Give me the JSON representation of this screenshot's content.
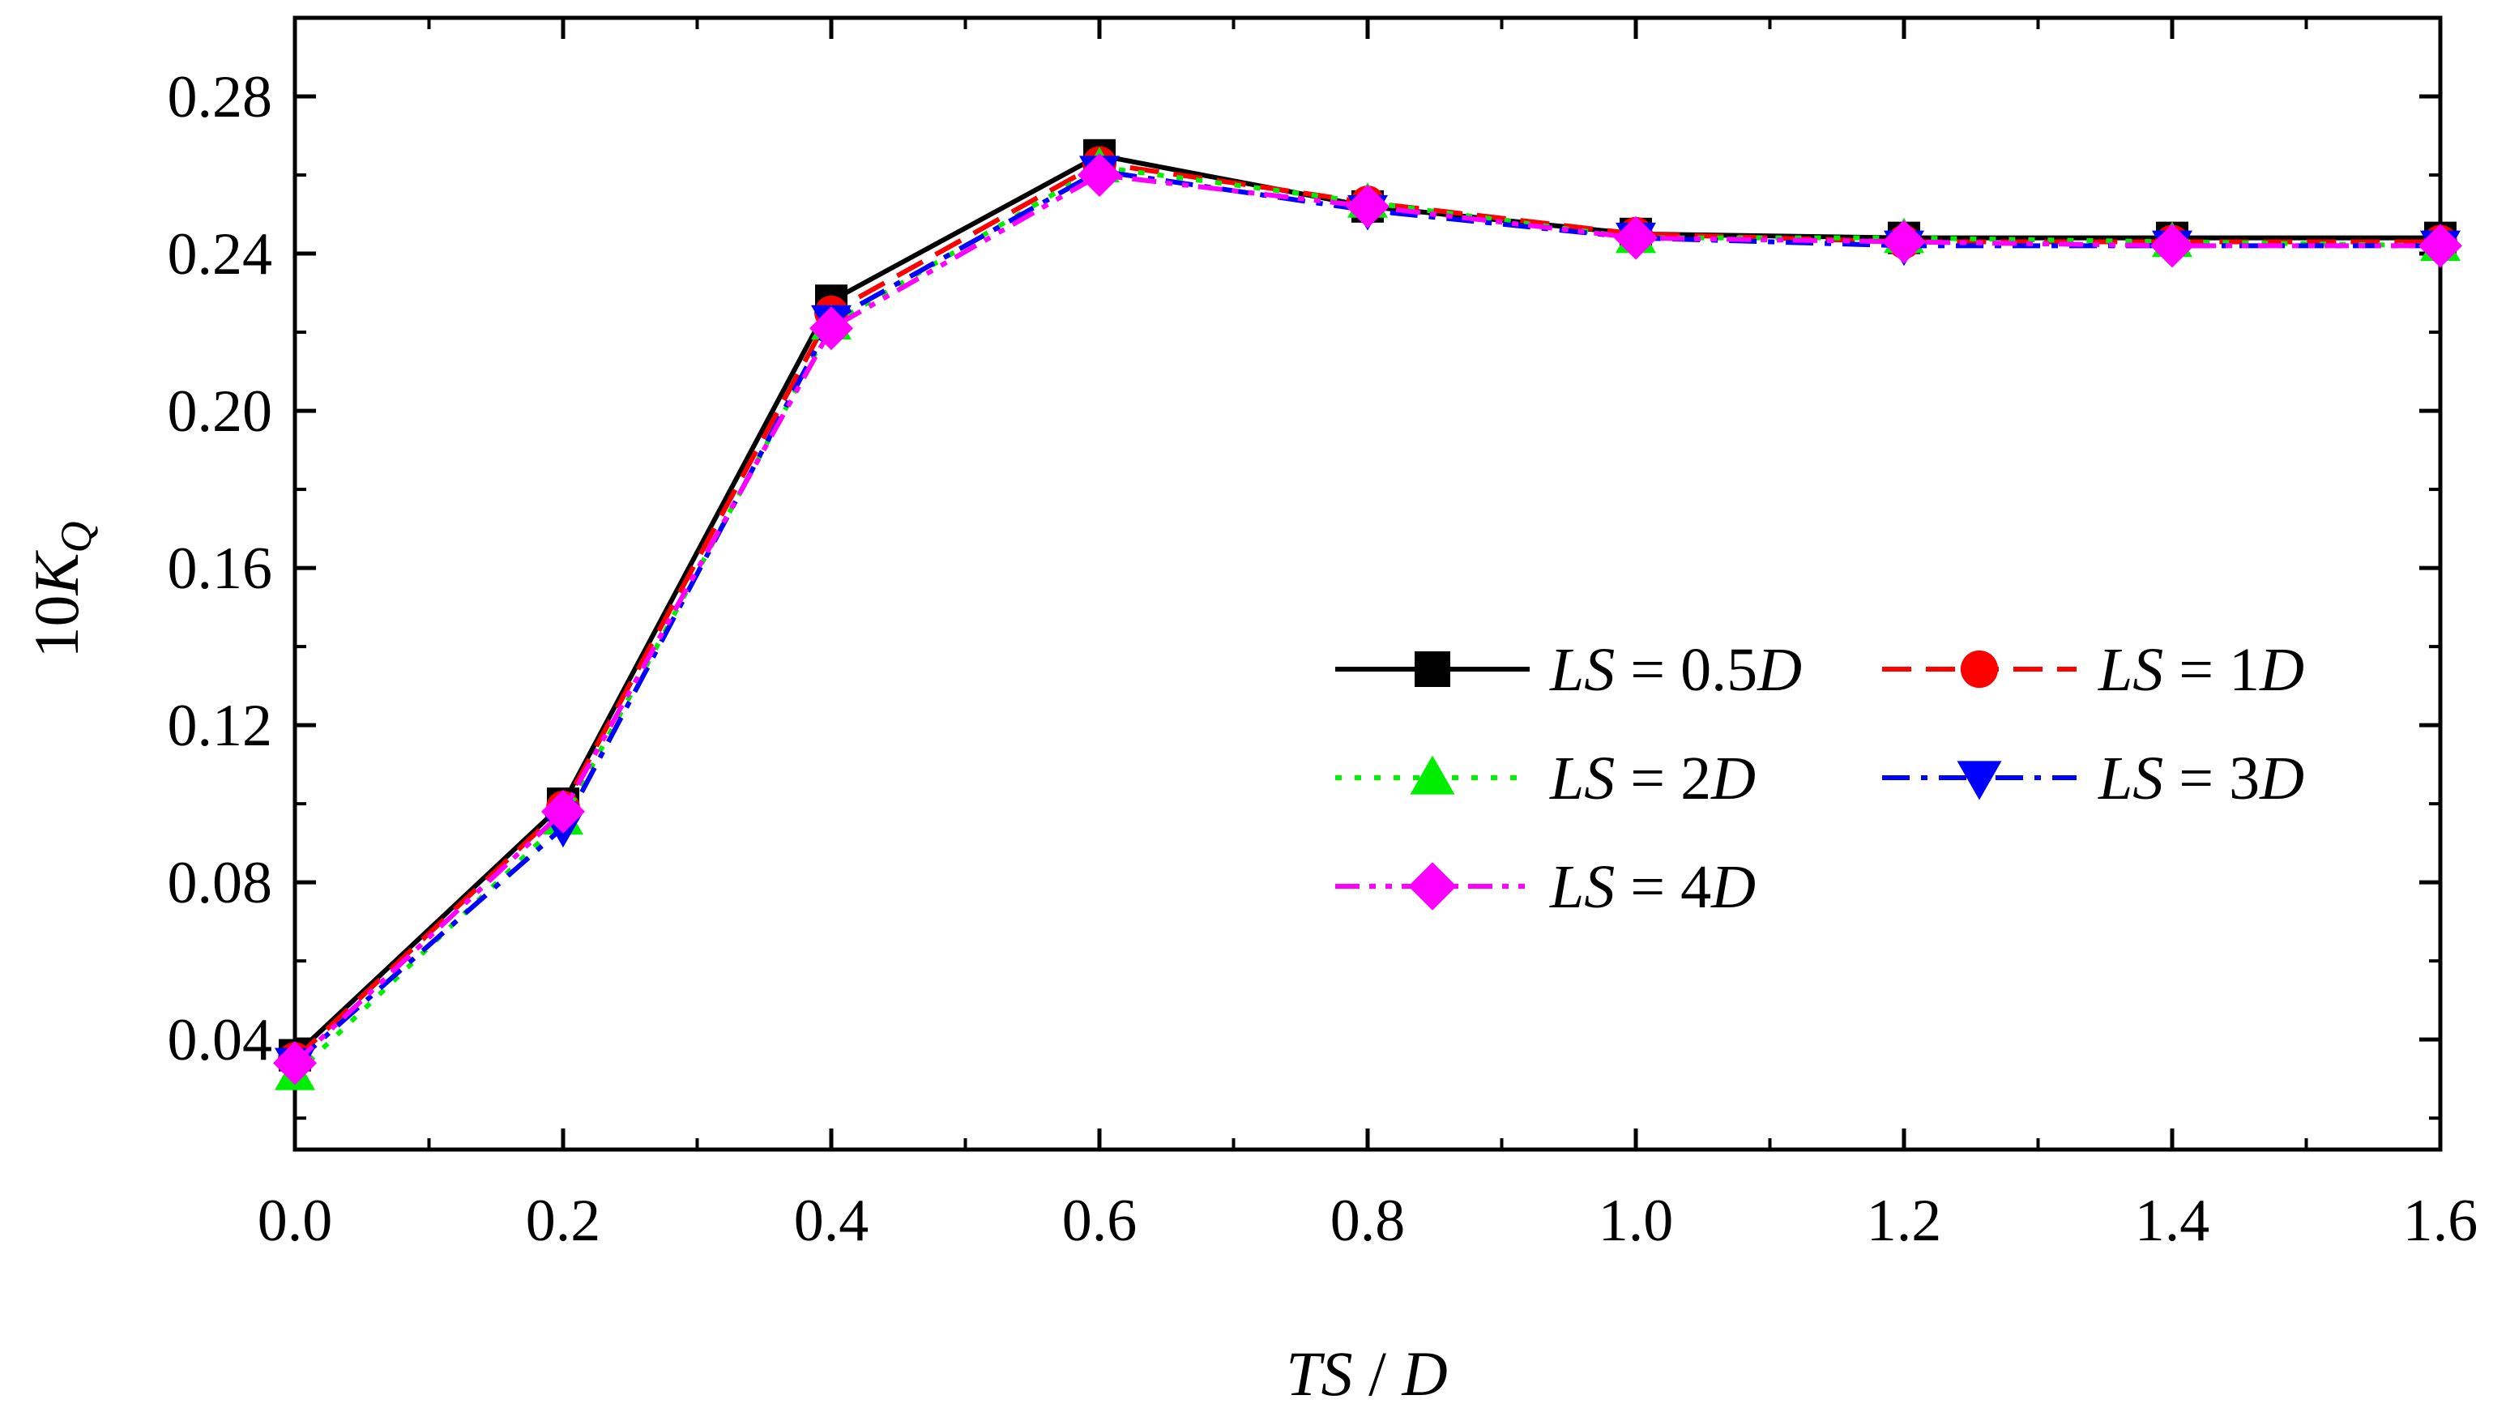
{
  "chart_data": {
    "type": "line",
    "title": "",
    "xlabel": {
      "italic": "TS",
      "rest": " / ",
      "italic2": "D"
    },
    "ylabel": {
      "prefix": "10",
      "main": "K",
      "sub": "Q"
    },
    "xlim": [
      0.0,
      1.6
    ],
    "ylim": [
      0.012,
      0.3
    ],
    "xticks": [
      0.0,
      0.2,
      0.4,
      0.6,
      0.8,
      1.0,
      1.2,
      1.4,
      1.6
    ],
    "xtick_labels": [
      "0.0",
      "0.2",
      "0.4",
      "0.6",
      "0.8",
      "1.0",
      "1.2",
      "1.4",
      "1.6"
    ],
    "yticks": [
      0.04,
      0.08,
      0.12,
      0.16,
      0.2,
      0.24,
      0.28
    ],
    "ytick_labels": [
      "0.04",
      "0.08",
      "0.12",
      "0.16",
      "0.20",
      "0.24",
      "0.28"
    ],
    "grid": false,
    "legend_position": "center-right",
    "x": [
      0.0,
      0.2,
      0.4,
      0.6,
      0.8,
      1.0,
      1.2,
      1.4,
      1.6
    ],
    "series": [
      {
        "name": "LS = 0.5D",
        "label_italic": "LS",
        "label_eq": " = 0.5",
        "label_italic2": "D",
        "color": "#000000",
        "marker": "square",
        "dash": "solid",
        "values": [
          0.036,
          0.1,
          0.228,
          0.265,
          0.252,
          0.245,
          0.244,
          0.244,
          0.244
        ]
      },
      {
        "name": "LS = 1D",
        "label_italic": "LS",
        "label_eq": " = 1",
        "label_italic2": "D",
        "color": "#ff0000",
        "marker": "circle",
        "dash": "dash",
        "values": [
          0.035,
          0.099,
          0.225,
          0.263,
          0.253,
          0.245,
          0.243,
          0.243,
          0.243
        ]
      },
      {
        "name": "LS = 2D",
        "label_italic": "LS",
        "label_eq": " = 2",
        "label_italic2": "D",
        "color": "#00ee00",
        "marker": "triangle-up",
        "dash": "dot",
        "values": [
          0.031,
          0.096,
          0.222,
          0.262,
          0.253,
          0.244,
          0.244,
          0.243,
          0.242
        ]
      },
      {
        "name": "LS = 3D",
        "label_italic": "LS",
        "label_eq": " = 3",
        "label_italic2": "D",
        "color": "#0000ff",
        "marker": "triangle-down",
        "dash": "dashdot",
        "values": [
          0.034,
          0.094,
          0.223,
          0.261,
          0.251,
          0.244,
          0.242,
          0.242,
          0.242
        ]
      },
      {
        "name": "LS = 4D",
        "label_italic": "LS",
        "label_eq": " = 4",
        "label_italic2": "D",
        "color": "#ff00ff",
        "marker": "diamond",
        "dash": "dashdotdot",
        "values": [
          0.034,
          0.098,
          0.221,
          0.26,
          0.252,
          0.244,
          0.243,
          0.242,
          0.242
        ]
      }
    ]
  }
}
